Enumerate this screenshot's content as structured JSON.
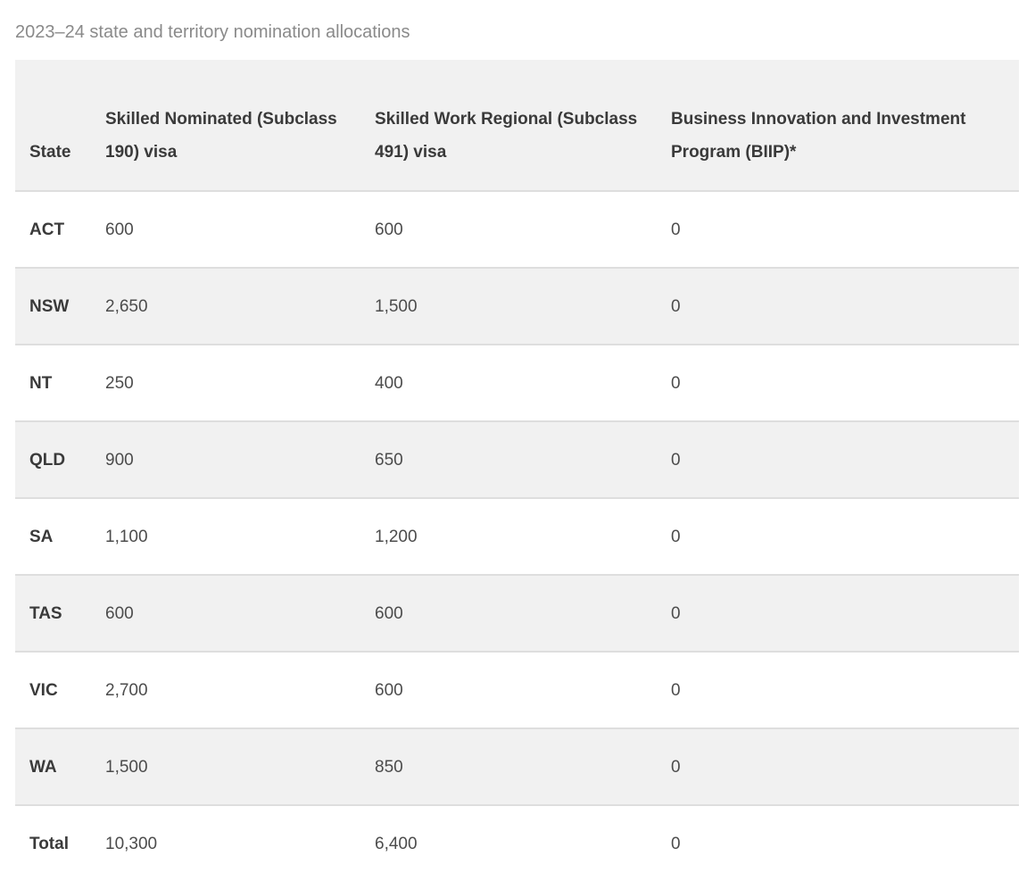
{
  "page": {
    "title": "2023–24 state and territory nomination allocations"
  },
  "table": {
    "headers": {
      "state": "State",
      "sc190": "Skilled Nominated (Subclass 190) visa",
      "sc491": "Skilled Work Regional (Subclass 491) visa",
      "biip": "Business Innovation and Investment Program (BIIP)*"
    },
    "rows": [
      {
        "state": "ACT",
        "sc190": "600",
        "sc491": "600",
        "biip": "0"
      },
      {
        "state": "NSW",
        "sc190": "2,650",
        "sc491": "1,500",
        "biip": "0"
      },
      {
        "state": "NT",
        "sc190": "250",
        "sc491": "400",
        "biip": "0"
      },
      {
        "state": "QLD",
        "sc190": "900",
        "sc491": "650",
        "biip": "0"
      },
      {
        "state": "SA",
        "sc190": "1,100",
        "sc491": "1,200",
        "biip": "0"
      },
      {
        "state": "TAS",
        "sc190": "600",
        "sc491": "600",
        "biip": "0"
      },
      {
        "state": "VIC",
        "sc190": "2,700",
        "sc491": "600",
        "biip": "0"
      },
      {
        "state": "WA",
        "sc190": "1,500",
        "sc491": "850",
        "biip": "0"
      },
      {
        "state": "Total",
        "sc190": "10,300",
        "sc491": "6,400",
        "biip": "0"
      }
    ]
  },
  "chart_data": {
    "type": "table",
    "title": "2023–24 state and territory nomination allocations",
    "columns": [
      "State",
      "Skilled Nominated (Subclass 190) visa",
      "Skilled Work Regional (Subclass 491) visa",
      "Business Innovation and Investment Program (BIIP)*"
    ],
    "rows": [
      [
        "ACT",
        600,
        600,
        0
      ],
      [
        "NSW",
        2650,
        1500,
        0
      ],
      [
        "NT",
        250,
        400,
        0
      ],
      [
        "QLD",
        900,
        650,
        0
      ],
      [
        "SA",
        1100,
        1200,
        0
      ],
      [
        "TAS",
        600,
        600,
        0
      ],
      [
        "VIC",
        2700,
        600,
        0
      ],
      [
        "WA",
        1500,
        850,
        0
      ],
      [
        "Total",
        10300,
        6400,
        0
      ]
    ]
  },
  "colors": {
    "header_bg": "#f1f1f1",
    "stripe_bg": "#f1f1f1",
    "row_border": "#dedede",
    "title_text": "#8a8a8a",
    "value_text": "#4c4c4c",
    "bold_text": "#3a3a3a"
  }
}
